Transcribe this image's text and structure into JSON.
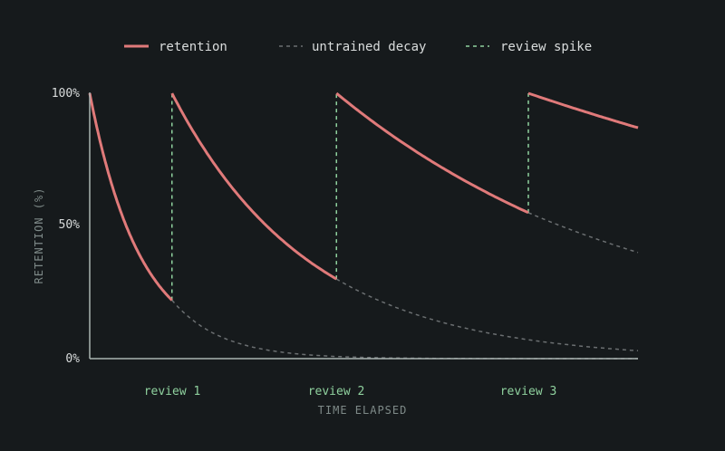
{
  "chart_data": {
    "type": "line",
    "xlabel": "TIME ELAPSED",
    "ylabel": "RETENTION (%)",
    "ylim": [
      0,
      100
    ],
    "yticks": [
      {
        "value": 100,
        "label": "100%"
      },
      {
        "value": 50,
        "label": "50%"
      },
      {
        "value": 0,
        "label": "0%"
      }
    ],
    "xlim": [
      0,
      1
    ],
    "legend": {
      "placement": "top",
      "entries": [
        {
          "label": "retention",
          "style": "solid",
          "color": "#e07a7a"
        },
        {
          "label": "untrained decay",
          "style": "dashed",
          "color": "#6b6f71"
        },
        {
          "label": "review spike",
          "style": "dashed",
          "color": "#8fd19e"
        }
      ]
    },
    "reviews": [
      {
        "label": "review 1",
        "x": 0.15
      },
      {
        "label": "review 2",
        "x": 0.45
      },
      {
        "label": "review 3",
        "x": 0.8
      }
    ],
    "series": [
      {
        "name": "retention",
        "style": "solid",
        "color": "#e07a7a",
        "segments": [
          {
            "x": [
              0,
              0.15
            ],
            "y": [
              100,
              22
            ],
            "k": 10.9
          },
          {
            "x": [
              0.15,
              0.45
            ],
            "y": [
              100,
              30
            ],
            "k": 4.0
          },
          {
            "x": [
              0.45,
              0.8
            ],
            "y": [
              100,
              55
            ],
            "k": 1.7
          },
          {
            "x": [
              0.8,
              1.0
            ],
            "y": [
              100,
              87
            ],
            "k": 0.7
          }
        ]
      },
      {
        "name": "untrained decay",
        "style": "dashed",
        "color": "#6b6f71",
        "segments": [
          {
            "x": [
              0.15,
              1.0
            ],
            "y": [
              22,
              0
            ],
            "k": 11.0
          },
          {
            "x": [
              0.45,
              1.0
            ],
            "y": [
              30,
              3
            ],
            "k": 4.0
          },
          {
            "x": [
              0.8,
              1.0
            ],
            "y": [
              55,
              40
            ],
            "k": 1.7
          }
        ]
      },
      {
        "name": "review spike",
        "style": "dashed",
        "color": "#8fd19e",
        "segments": [
          {
            "x": [
              0.15,
              0.15
            ],
            "y": [
              22,
              100
            ]
          },
          {
            "x": [
              0.45,
              0.45
            ],
            "y": [
              30,
              100
            ]
          },
          {
            "x": [
              0.8,
              0.8
            ],
            "y": [
              55,
              100
            ]
          }
        ]
      }
    ]
  },
  "colors": {
    "background": "#161a1c",
    "axis": "#aab4b2",
    "retention": "#e07a7a",
    "decay": "#6b6f71",
    "spike": "#8fd19e"
  }
}
